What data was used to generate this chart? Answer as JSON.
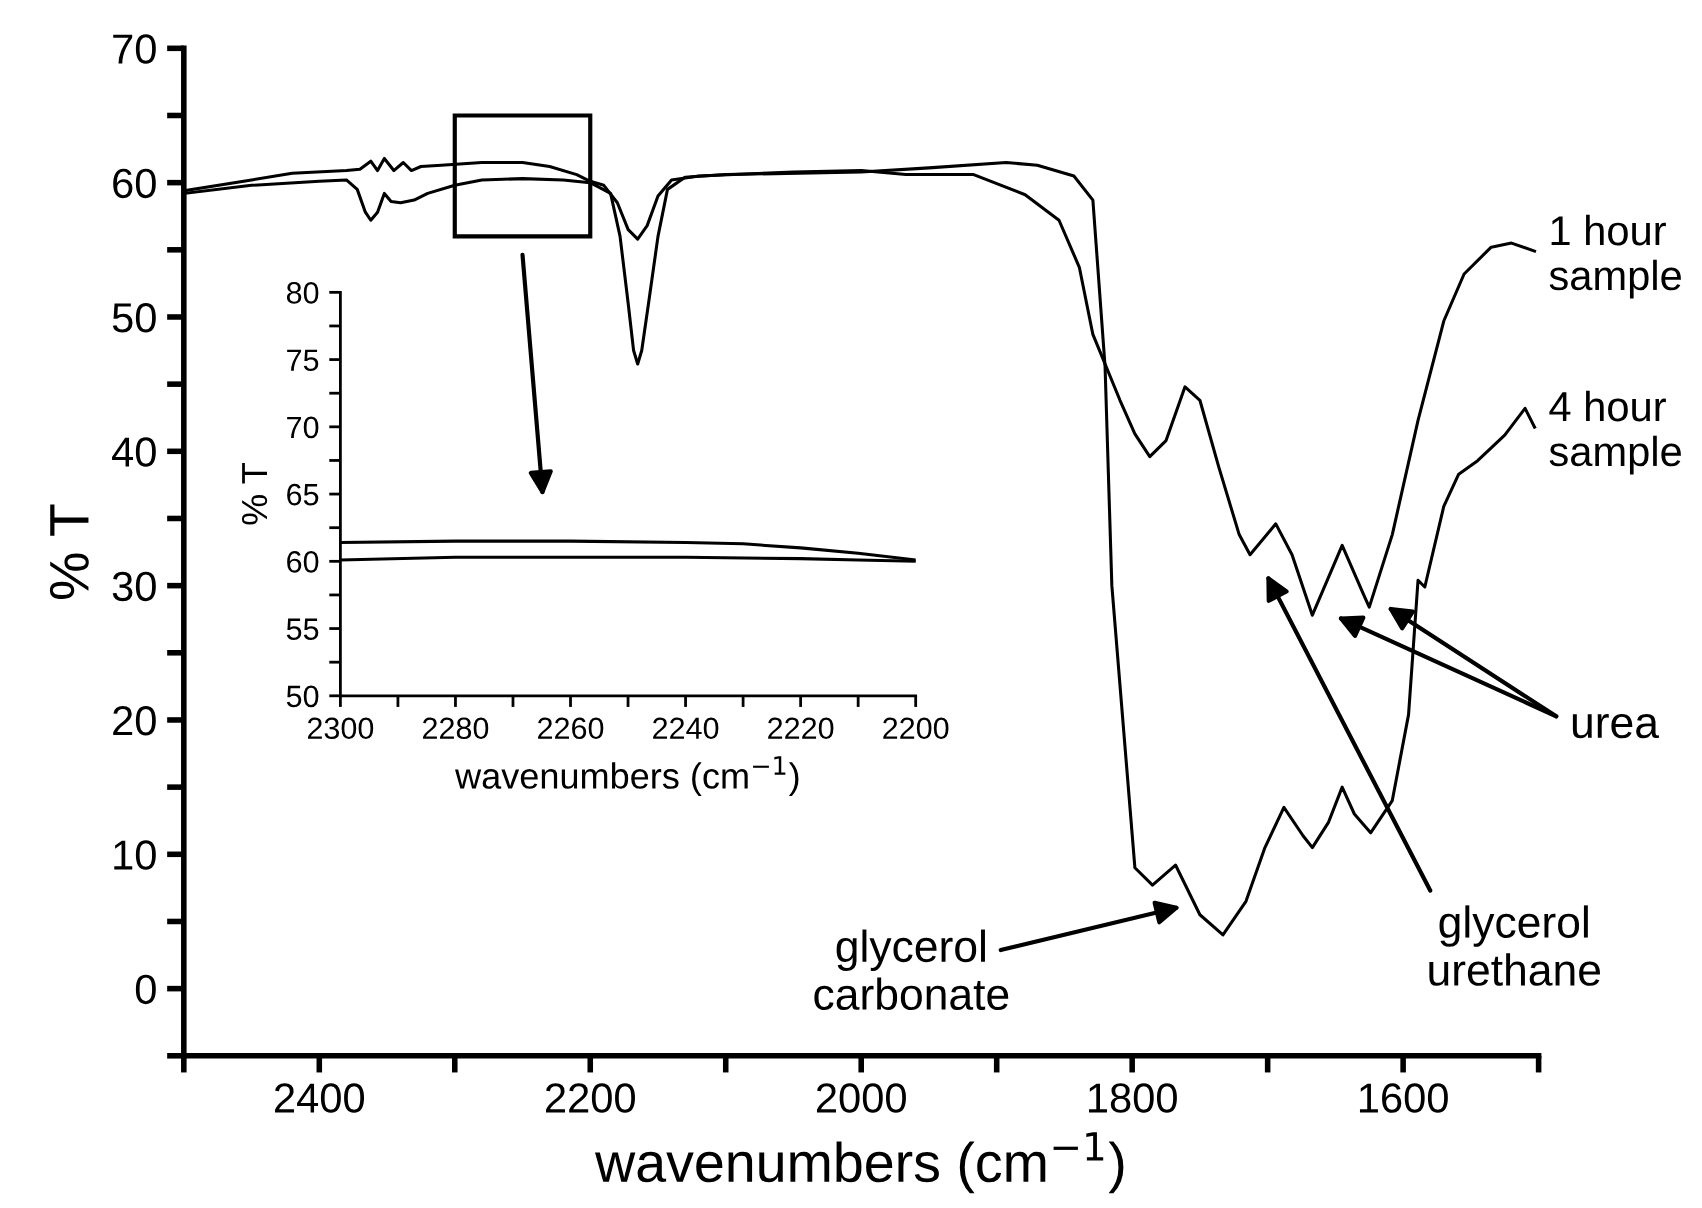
{
  "chart_data": [
    {
      "type": "line",
      "xlabel": "wavenumbers (cm$^{−1}$)",
      "ylabel": "% T",
      "xlim": [
        2500,
        1500
      ],
      "ylim": [
        -5,
        70
      ],
      "xticks": [
        {
          "value": 2500,
          "label": null
        },
        2400,
        {
          "value": 2300,
          "label": null
        },
        2200,
        {
          "value": 2100,
          "label": null
        },
        2000,
        {
          "value": 1900,
          "label": null
        },
        1800,
        {
          "value": 1700,
          "label": null
        },
        1600,
        {
          "value": 1500,
          "label": null
        }
      ],
      "yticks": [
        {
          "value": -5,
          "label": null
        },
        0,
        {
          "value": 5,
          "label": null
        },
        10,
        {
          "value": 15,
          "label": null
        },
        20,
        {
          "value": 25,
          "label": null
        },
        30,
        {
          "value": 35,
          "label": null
        },
        40,
        {
          "value": 45,
          "label": null
        },
        50,
        {
          "value": 55,
          "label": null
        },
        60,
        {
          "value": 65,
          "label": null
        },
        70
      ],
      "grid": false,
      "legend": false,
      "marker": "none",
      "line_style": "solid",
      "series": [
        {
          "name": "1 hour sample",
          "color": "#000000",
          "x": [
            2500,
            2450,
            2420,
            2380,
            2370,
            2362,
            2357,
            2352,
            2345,
            2338,
            2332,
            2325,
            2310,
            2280,
            2250,
            2230,
            2210,
            2200,
            2190,
            2180,
            2172,
            2165,
            2158,
            2150,
            2140,
            2120,
            2050,
            2000,
            1967,
            1917,
            1879,
            1854,
            1839,
            1829,
            1809,
            1798,
            1787,
            1775,
            1761,
            1750,
            1736,
            1721,
            1713,
            1694,
            1682,
            1667,
            1645,
            1629,
            1625,
            1608,
            1589,
            1570,
            1555,
            1535,
            1520,
            1503
          ],
          "values": [
            59.4,
            60.2,
            60.7,
            60.9,
            61.0,
            61.6,
            60.9,
            61.8,
            60.9,
            61.5,
            60.9,
            61.2,
            61.3,
            61.5,
            61.5,
            61.2,
            60.6,
            60.1,
            59.8,
            58.5,
            56.5,
            55.8,
            56.8,
            59.0,
            60.2,
            60.5,
            60.8,
            60.9,
            60.6,
            60.6,
            59.1,
            57.2,
            53.7,
            48.7,
            43.8,
            41.3,
            39.6,
            40.8,
            44.8,
            43.8,
            38.8,
            33.8,
            32.3,
            34.6,
            32.3,
            27.8,
            33.0,
            29.3,
            28.4,
            33.8,
            42.3,
            49.7,
            53.2,
            55.2,
            55.5,
            54.9
          ]
        },
        {
          "name": "4 hour sample",
          "color": "#000000",
          "x": [
            2500,
            2450,
            2400,
            2380,
            2372,
            2366,
            2362,
            2357,
            2352,
            2347,
            2340,
            2330,
            2320,
            2300,
            2280,
            2250,
            2220,
            2200,
            2185,
            2178,
            2172,
            2168,
            2165,
            2162,
            2157,
            2150,
            2143,
            2130,
            2100,
            2000,
            1950,
            1893,
            1870,
            1843,
            1829,
            1820,
            1815,
            1798,
            1785,
            1768,
            1750,
            1733,
            1716,
            1702,
            1688,
            1674,
            1667,
            1655,
            1645,
            1636,
            1624,
            1608,
            1596,
            1589,
            1584,
            1570,
            1559,
            1545,
            1525,
            1510,
            1503
          ],
          "values": [
            59.2,
            59.8,
            60.1,
            60.2,
            59.5,
            57.8,
            57.2,
            57.8,
            59.2,
            58.6,
            58.5,
            58.7,
            59.2,
            59.8,
            60.2,
            60.3,
            60.2,
            60.0,
            59.2,
            56.0,
            51.0,
            47.5,
            46.5,
            47.5,
            51.0,
            56.0,
            59.5,
            60.4,
            60.6,
            60.8,
            61.1,
            61.5,
            61.3,
            60.5,
            58.7,
            46.3,
            30.0,
            9.0,
            7.7,
            9.2,
            5.5,
            4.0,
            6.5,
            10.5,
            13.5,
            11.4,
            10.5,
            12.4,
            15.0,
            13.0,
            11.6,
            14.0,
            20.4,
            30.4,
            29.9,
            35.9,
            38.3,
            39.3,
            41.2,
            43.2,
            41.8
          ]
        }
      ],
      "annotations": [
        "urea",
        "glycerol\nurethane",
        "glycerol\ncarbonate"
      ]
    },
    {
      "type": "line",
      "xlabel": "wavenumbers (cm$^{−1}$)",
      "ylabel": "% T",
      "xlim": [
        2300,
        2200
      ],
      "ylim": [
        50,
        80
      ],
      "xticks": [
        2300,
        {
          "value": 2290,
          "label": null
        },
        2280,
        {
          "value": 2270,
          "label": null
        },
        2260,
        {
          "value": 2250,
          "label": null
        },
        2240,
        {
          "value": 2230,
          "label": null
        },
        2220,
        {
          "value": 2210,
          "label": null
        },
        2200
      ],
      "yticks": [
        50,
        {
          "value": 52.5,
          "label": null
        },
        55,
        {
          "value": 57.5,
          "label": null
        },
        60,
        {
          "value": 62.5,
          "label": null
        },
        65,
        {
          "value": 67.5,
          "label": null
        },
        70,
        {
          "value": 72.5,
          "label": null
        },
        75,
        {
          "value": 77.5,
          "label": null
        },
        80
      ],
      "grid": false,
      "legend": false,
      "marker": "none",
      "line_style": "solid",
      "series": [
        {
          "color": "#000000",
          "x": [
            2300,
            2280,
            2260,
            2240,
            2230,
            2220,
            2210,
            2200
          ],
          "values": [
            61.4,
            61.5,
            61.5,
            61.4,
            61.3,
            61.0,
            60.6,
            60.1
          ]
        },
        {
          "color": "#000000",
          "x": [
            2300,
            2280,
            2260,
            2240,
            2220,
            2210,
            2200
          ],
          "values": [
            60.1,
            60.3,
            60.3,
            60.3,
            60.2,
            60.1,
            60.0
          ]
        }
      ]
    }
  ]
}
